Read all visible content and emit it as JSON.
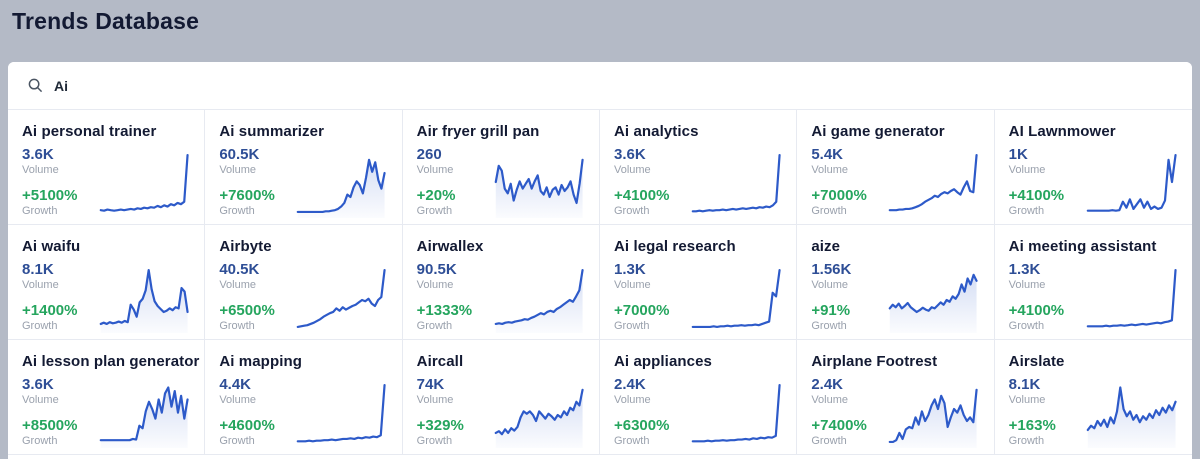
{
  "header": {
    "title": "Trends Database"
  },
  "search": {
    "value": "Ai"
  },
  "labels": {
    "volume": "Volume",
    "growth": "Growth"
  },
  "colors": {
    "header_bg": "#b4bac6",
    "title_text": "#131a33",
    "volume_text": "#2e4e96",
    "growth_text": "#25a55e",
    "muted_label": "#9aa1ad",
    "spark_line": "#2d5ac9",
    "border": "#e7eaf1"
  },
  "chart_data": {
    "type": "line",
    "note": "sparklines per card, values normalized 0-100",
    "series_location": "cards[].spark"
  },
  "cards": [
    {
      "title": "Ai personal trainer",
      "volume": "3.6K",
      "growth": "+5100%",
      "fill": false,
      "spark": [
        8,
        7,
        9,
        8,
        7,
        8,
        9,
        8,
        9,
        10,
        9,
        11,
        10,
        12,
        11,
        13,
        12,
        15,
        13,
        16,
        14,
        18,
        16,
        20,
        18,
        22,
        100
      ]
    },
    {
      "title": "Ai summarizer",
      "volume": "60.5K",
      "growth": "+7600%",
      "fill": true,
      "spark": [
        5,
        5,
        5,
        5,
        5,
        5,
        5,
        5,
        5,
        6,
        6,
        7,
        8,
        10,
        14,
        20,
        34,
        30,
        46,
        56,
        50,
        36,
        62,
        92,
        72,
        88,
        58,
        44,
        70
      ]
    },
    {
      "title": "Air fryer grill pan",
      "volume": "260",
      "growth": "+20%",
      "fill": true,
      "spark": [
        55,
        82,
        74,
        44,
        36,
        52,
        24,
        42,
        56,
        44,
        52,
        60,
        44,
        56,
        66,
        40,
        34,
        46,
        30,
        42,
        46,
        34,
        50,
        40,
        46,
        56,
        34,
        20,
        52,
        92
      ]
    },
    {
      "title": "Ai analytics",
      "volume": "3.6K",
      "growth": "+4100%",
      "fill": false,
      "spark": [
        6,
        6,
        7,
        6,
        7,
        8,
        7,
        8,
        8,
        9,
        8,
        9,
        10,
        9,
        10,
        11,
        10,
        11,
        12,
        11,
        13,
        12,
        14,
        13,
        16,
        22,
        100
      ]
    },
    {
      "title": "Ai game generator",
      "volume": "5.4K",
      "growth": "+7000%",
      "fill": false,
      "spark": [
        8,
        8,
        8,
        9,
        9,
        10,
        10,
        11,
        13,
        15,
        18,
        22,
        25,
        28,
        32,
        30,
        35,
        38,
        36,
        40,
        43,
        38,
        34,
        46,
        56,
        40,
        38,
        100
      ]
    },
    {
      "title": "AI Lawnmower",
      "volume": "1K",
      "growth": "+4100%",
      "fill": false,
      "spark": [
        7,
        7,
        7,
        7,
        7,
        7,
        7,
        8,
        7,
        8,
        22,
        12,
        26,
        10,
        18,
        26,
        12,
        22,
        10,
        14,
        10,
        12,
        24,
        92,
        55,
        100
      ]
    },
    {
      "title": "Ai waifu",
      "volume": "8.1K",
      "growth": "+1400%",
      "fill": true,
      "spark": [
        10,
        12,
        10,
        13,
        11,
        12,
        14,
        12,
        15,
        13,
        42,
        34,
        22,
        46,
        52,
        66,
        100,
        68,
        48,
        40,
        35,
        30,
        32,
        36,
        33,
        38,
        36,
        70,
        64,
        30
      ]
    },
    {
      "title": "Airbyte",
      "volume": "40.5K",
      "growth": "+6500%",
      "fill": false,
      "spark": [
        5,
        6,
        7,
        8,
        10,
        12,
        15,
        18,
        22,
        25,
        28,
        30,
        36,
        32,
        38,
        34,
        37,
        40,
        42,
        46,
        50,
        48,
        52,
        44,
        40,
        50,
        55,
        100
      ]
    },
    {
      "title": "Airwallex",
      "volume": "90.5K",
      "growth": "+1333%",
      "fill": true,
      "spark": [
        10,
        11,
        10,
        12,
        13,
        12,
        14,
        15,
        16,
        18,
        17,
        20,
        22,
        25,
        28,
        26,
        30,
        32,
        30,
        35,
        38,
        42,
        46,
        50,
        47,
        56,
        66,
        100
      ]
    },
    {
      "title": "Ai legal research",
      "volume": "1.3K",
      "growth": "+7000%",
      "fill": false,
      "spark": [
        5,
        5,
        5,
        5,
        5,
        5,
        6,
        5,
        6,
        6,
        7,
        6,
        7,
        7,
        8,
        7,
        8,
        8,
        9,
        8,
        10,
        12,
        14,
        62,
        56,
        100
      ]
    },
    {
      "title": "aize",
      "volume": "1.56K",
      "growth": "+91%",
      "fill": true,
      "spark": [
        36,
        42,
        38,
        44,
        36,
        40,
        45,
        38,
        34,
        30,
        33,
        37,
        34,
        32,
        38,
        36,
        41,
        46,
        42,
        50,
        47,
        56,
        52,
        60,
        76,
        64,
        86,
        76,
        92,
        82
      ]
    },
    {
      "title": "Ai meeting assistant",
      "volume": "1.3K",
      "growth": "+4100%",
      "fill": false,
      "spark": [
        6,
        6,
        6,
        6,
        6,
        7,
        6,
        7,
        7,
        8,
        7,
        8,
        9,
        8,
        9,
        10,
        9,
        10,
        11,
        12,
        11,
        13,
        14,
        16,
        100
      ]
    },
    {
      "title": "Ai lesson plan generator",
      "volume": "3.6K",
      "growth": "+8500%",
      "fill": true,
      "spark": [
        8,
        8,
        8,
        8,
        8,
        8,
        8,
        8,
        8,
        8,
        10,
        9,
        32,
        28,
        56,
        72,
        60,
        44,
        76,
        54,
        86,
        96,
        64,
        90,
        54,
        82,
        44,
        76
      ]
    },
    {
      "title": "Ai mapping",
      "volume": "4.4K",
      "growth": "+4600%",
      "fill": false,
      "spark": [
        6,
        6,
        6,
        7,
        6,
        7,
        7,
        8,
        8,
        9,
        8,
        9,
        10,
        10,
        11,
        10,
        12,
        11,
        13,
        12,
        14,
        13,
        16,
        100
      ]
    },
    {
      "title": "Aircall",
      "volume": "74K",
      "growth": "+329%",
      "fill": true,
      "spark": [
        20,
        23,
        18,
        26,
        20,
        28,
        24,
        30,
        46,
        56,
        52,
        56,
        50,
        40,
        56,
        50,
        44,
        52,
        48,
        42,
        50,
        46,
        56,
        50,
        62,
        58,
        72,
        66,
        92
      ]
    },
    {
      "title": "Ai appliances",
      "volume": "2.4K",
      "growth": "+6300%",
      "fill": false,
      "spark": [
        6,
        6,
        6,
        6,
        7,
        6,
        7,
        7,
        8,
        7,
        8,
        8,
        9,
        9,
        10,
        9,
        11,
        10,
        12,
        11,
        13,
        12,
        15,
        100
      ]
    },
    {
      "title": "Airplane Footrest",
      "volume": "2.4K",
      "growth": "+7400%",
      "fill": true,
      "spark": [
        5,
        5,
        8,
        20,
        10,
        26,
        30,
        28,
        46,
        34,
        56,
        40,
        50,
        66,
        76,
        60,
        82,
        70,
        30,
        46,
        60,
        54,
        66,
        50,
        40,
        46,
        38,
        92
      ]
    },
    {
      "title": "Airslate",
      "volume": "8.1K",
      "growth": "+163%",
      "fill": true,
      "spark": [
        25,
        32,
        28,
        40,
        32,
        42,
        30,
        46,
        36,
        56,
        96,
        60,
        48,
        56,
        42,
        50,
        38,
        48,
        42,
        52,
        45,
        58,
        50,
        62,
        54,
        66,
        58,
        72
      ]
    }
  ]
}
